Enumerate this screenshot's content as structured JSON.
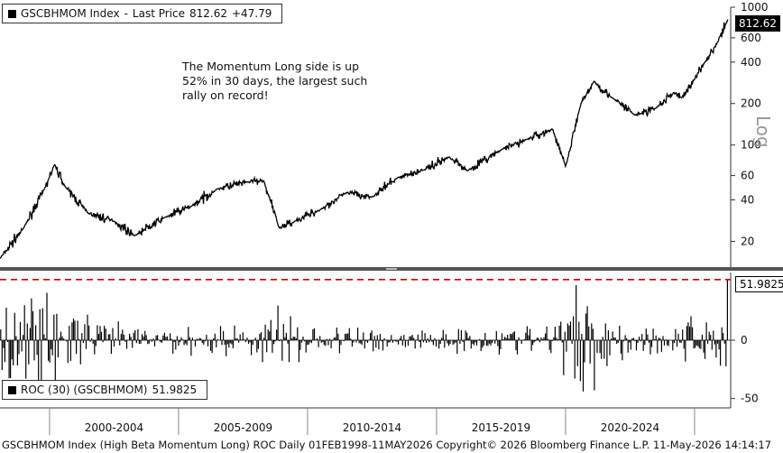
{
  "chart_data": [
    {
      "type": "line",
      "series_id": "GSCBHMOM Index",
      "legend": {
        "ticker": "GSCBHMOM Index",
        "sep": "-",
        "field": "Last Price",
        "value": "812.62",
        "change": "+47.79"
      },
      "last_value_label": "812.62",
      "y_scale": "log",
      "y_axis_title": "Log",
      "ylim": [
        13,
        1000
      ],
      "yticks": [
        20,
        40,
        60,
        100,
        200,
        400,
        600,
        1000
      ],
      "x": [
        1998.08,
        1999.0,
        1999.8,
        2000.2,
        2000.6,
        2001.5,
        2002.5,
        2003.3,
        2004.5,
        2005.5,
        2006.5,
        2007.7,
        2008.3,
        2008.9,
        2009.5,
        2010.5,
        2011.5,
        2012.5,
        2013.5,
        2014.5,
        2015.5,
        2016.2,
        2017.5,
        2018.5,
        2019.5,
        2020.0,
        2020.6,
        2021.1,
        2021.8,
        2022.7,
        2023.5,
        2024.2,
        2024.5,
        2025.0,
        2025.4,
        2025.9,
        2026.3
      ],
      "values": [
        15,
        25,
        48,
        72,
        50,
        32,
        28,
        22,
        30,
        36,
        48,
        54,
        55,
        25,
        28,
        34,
        45,
        42,
        58,
        66,
        82,
        65,
        92,
        110,
        130,
        70,
        200,
        290,
        220,
        165,
        185,
        240,
        220,
        300,
        400,
        560,
        812.62
      ]
    },
    {
      "type": "bar",
      "series_id": "ROC (30) (GSCBHMOM)",
      "legend": {
        "label": "ROC (30) (GSCBHMOM)",
        "value": "51.9825"
      },
      "last_value_label": "51.9825",
      "ylim": [
        -58,
        58
      ],
      "yticks": [
        -50,
        0
      ],
      "reference_line": 51.9825,
      "profile_x": [
        1998.08,
        1999.0,
        1999.8,
        2000.3,
        2001.0,
        2002.0,
        2003.0,
        2004.5,
        2006.0,
        2007.5,
        2008.3,
        2008.8,
        2009.3,
        2010.5,
        2012.0,
        2014.0,
        2016.0,
        2018.0,
        2019.8,
        2020.3,
        2020.8,
        2021.5,
        2022.5,
        2023.5,
        2024.5,
        2025.5,
        2026.3
      ],
      "profile_amplitude": [
        35,
        45,
        52,
        50,
        30,
        18,
        15,
        12,
        14,
        14,
        20,
        35,
        28,
        14,
        12,
        11,
        13,
        12,
        24,
        48,
        52,
        32,
        18,
        14,
        18,
        25,
        52
      ]
    }
  ],
  "x_axis": {
    "labels": [
      "2000-2004",
      "2005-2009",
      "2010-2014",
      "2015-2019",
      "2020-2024"
    ],
    "range": [
      1998.08,
      2026.4
    ]
  },
  "annotation": "The Momentum Long side is up 52% in 30 days, the largest such rally on record!",
  "footer": "GSCBHMOM Index (High Beta Momentum Long) ROC Daily 01FEB1998-11MAY2026 Copyright© 2026 Bloomberg Finance L.P. 11-May-2026 14:14:17",
  "colors": {
    "series": "#000000",
    "reference_line": "#cc0000",
    "divider": "#555555",
    "axis": "#333333"
  }
}
